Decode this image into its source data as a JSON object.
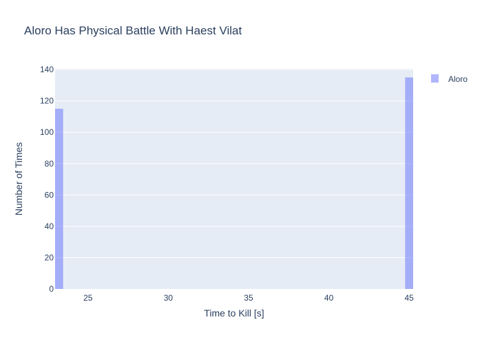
{
  "chart_data": {
    "type": "bar",
    "title": "Aloro Has Physical Battle With Haest Vilat",
    "xlabel": "Time to Kill [s]",
    "ylabel": "Number of Times",
    "xlim": [
      22.95,
      45.25
    ],
    "ylim": [
      0,
      140.5
    ],
    "xticks": [
      25,
      30,
      35,
      40,
      45
    ],
    "yticks": [
      0,
      20,
      40,
      60,
      80,
      100,
      120,
      140
    ],
    "grid": true,
    "legend_position": "top-right",
    "series": [
      {
        "name": "Aloro",
        "color": "#636efa",
        "opacity": 0.5,
        "bins": [
          {
            "x0": 22.95,
            "x1": 23.45,
            "count": 115
          },
          {
            "x0": 44.75,
            "x1": 45.25,
            "count": 135
          }
        ]
      }
    ]
  },
  "colors": {
    "plot_background": "#e5ecf6",
    "gridline": "#ffffff",
    "text": "#2a3f5f"
  }
}
